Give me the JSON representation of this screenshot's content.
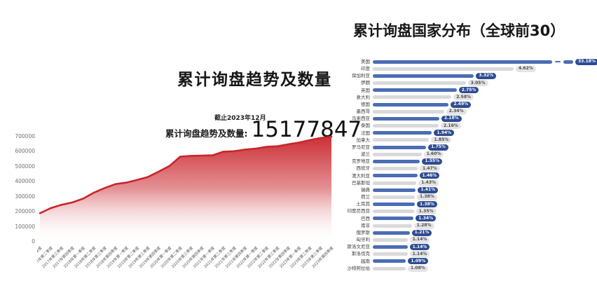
{
  "page": {
    "background": "#ffffff"
  },
  "trend_panel": {
    "title": "累计询盘趋势及数量",
    "asof_label": "截止2023年12月",
    "stat_label": "累计询盘趋势及数量:",
    "stat_value": "15177847"
  },
  "country_panel": {
    "title": "累计询盘国家分布（全球前30）"
  },
  "chart_data": [
    {
      "type": "area",
      "title": "累计询盘趋势及数量",
      "xlabel": "",
      "ylabel": "",
      "ylim": [
        0,
        700000
      ],
      "yticks": [
        0,
        100000,
        200000,
        300000,
        400000,
        500000,
        600000,
        700000
      ],
      "grid": false,
      "legend": "none",
      "line_color": "#c9252c",
      "fill_style": "vertical gradient red to white",
      "x": [
        "2017年第一季度",
        "2017年第二季度",
        "2017年第三季度",
        "2017年第四季度",
        "2018年第一季度",
        "2018年第二季度",
        "2018年第三季度",
        "2018年第四季度",
        "2019年第一季度",
        "2019年第二季度",
        "2019年第三季度",
        "2019年第四季度",
        "2020年第一季度",
        "2020年第二季度",
        "2020年第三季度",
        "2020年第四季度",
        "2021年第一季度",
        "2021年第二季度",
        "2021年第三季度",
        "2021年第四季度",
        "2022年第一季度",
        "2022年第二季度",
        "2022年第三季度",
        "2022年第四季度",
        "2023年第一季度",
        "2023年第二季度",
        "2023年第三季度",
        "2023年第四季度"
      ],
      "values": [
        190000,
        224000,
        246000,
        262000,
        287000,
        327000,
        358000,
        384000,
        394000,
        412000,
        431000,
        467000,
        505000,
        567000,
        572000,
        574000,
        576000,
        600000,
        603000,
        614000,
        620000,
        633000,
        636000,
        649000,
        661000,
        677000,
        691000,
        700000
      ]
    },
    {
      "type": "bar",
      "orientation": "horizontal",
      "title": "累计询盘国家分布（全球前30）",
      "value_unit": "%",
      "legend": "none",
      "axis_break_categories": [
        "美国"
      ],
      "colors": {
        "bar_primary": "#4a6db4",
        "bar_secondary": "#d9d9db",
        "badge_primary": "#2d4c92",
        "badge_primary_text": "#ffffff",
        "badge_secondary": "#e4e4e6",
        "badge_secondary_text": "#4a4a4a"
      },
      "categories": [
        "美国",
        "印度",
        "保加利亚",
        "伊朗",
        "英国",
        "意大利",
        "德国",
        "墨西哥",
        "马来西亚",
        "泰国",
        "法国",
        "加拿大",
        "罗马尼亚",
        "波兰",
        "克罗地亚",
        "西班牙",
        "澳大利亚",
        "巴基斯坦",
        "瑞典",
        "荷兰",
        "土耳其",
        "印度尼西亚",
        "巴西",
        "南非",
        "俄罗斯",
        "匈牙利",
        "斯洛文尼亚",
        "斯洛伐克",
        "越南",
        "沙特阿拉伯"
      ],
      "values": [
        33.18,
        4.62,
        3.32,
        3.05,
        2.75,
        2.58,
        2.49,
        2.34,
        2.18,
        2.16,
        1.94,
        1.85,
        1.75,
        1.6,
        1.55,
        1.47,
        1.46,
        1.43,
        1.41,
        1.38,
        1.38,
        1.35,
        1.34,
        1.28,
        1.21,
        1.14,
        1.14,
        1.14,
        1.09,
        1.08
      ],
      "labels": [
        "33.18%",
        "4.62%",
        "3.32%",
        "3.05%",
        "2.75%",
        "2.58%",
        "2.49%",
        "2.34%",
        "2.18%",
        "2.16%",
        "1.94%",
        "1.85%",
        "1.75%",
        "1.60%",
        "1.55%",
        "1.47%",
        "1.46%",
        "1.43%",
        "1.41%",
        "1.38%",
        "1.38%",
        "1.35%",
        "1.34%",
        "1.28%",
        "1.21%",
        "1.14%",
        "1.14%",
        "1.14%",
        "1.09%",
        "1.08%"
      ]
    }
  ]
}
